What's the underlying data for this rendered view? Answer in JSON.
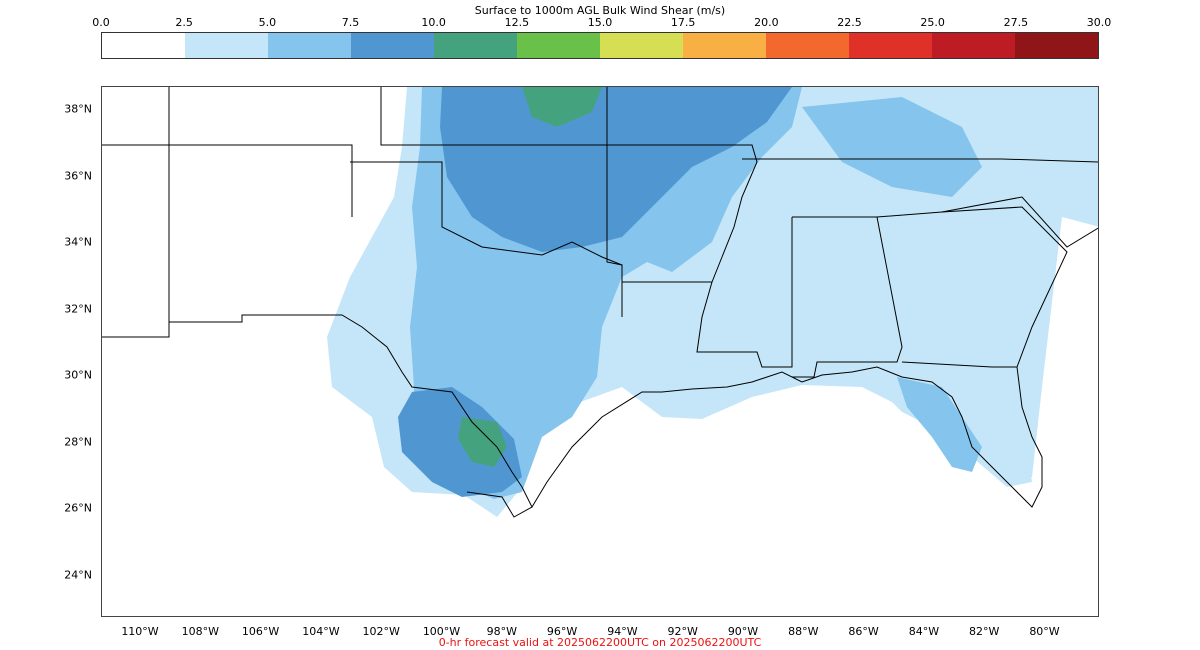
{
  "colorbar": {
    "title": "Surface to 1000m AGL Bulk Wind Shear (m/s)",
    "ticks": [
      "0.0",
      "2.5",
      "5.0",
      "7.5",
      "10.0",
      "12.5",
      "15.0",
      "17.5",
      "20.0",
      "22.5",
      "25.0",
      "27.5",
      "30.0"
    ],
    "colors": [
      "#ffffff",
      "#c4e6f8",
      "#85c4ec",
      "#5097d2",
      "#45a27f",
      "#6ac14a",
      "#d6df54",
      "#f8b045",
      "#f3682d",
      "#df3127",
      "#bd1c24",
      "#8f1519"
    ]
  },
  "map": {
    "lat_labels": [
      "38°N",
      "36°N",
      "34°N",
      "32°N",
      "30°N",
      "28°N",
      "26°N",
      "24°N"
    ],
    "lon_labels": [
      "110°W",
      "108°W",
      "106°W",
      "104°W",
      "102°W",
      "100°W",
      "98°W",
      "96°W",
      "94°W",
      "92°W",
      "90°W",
      "88°W",
      "86°W",
      "84°W",
      "82°W",
      "80°W"
    ],
    "field_levels": {
      "light_blue": 2.5,
      "medium_blue": 5.0,
      "blue": 7.5,
      "teal": 10.0
    }
  },
  "footer": {
    "valid_text": "0-hr forecast valid at 2025062200UTC on 2025062200UTC"
  }
}
